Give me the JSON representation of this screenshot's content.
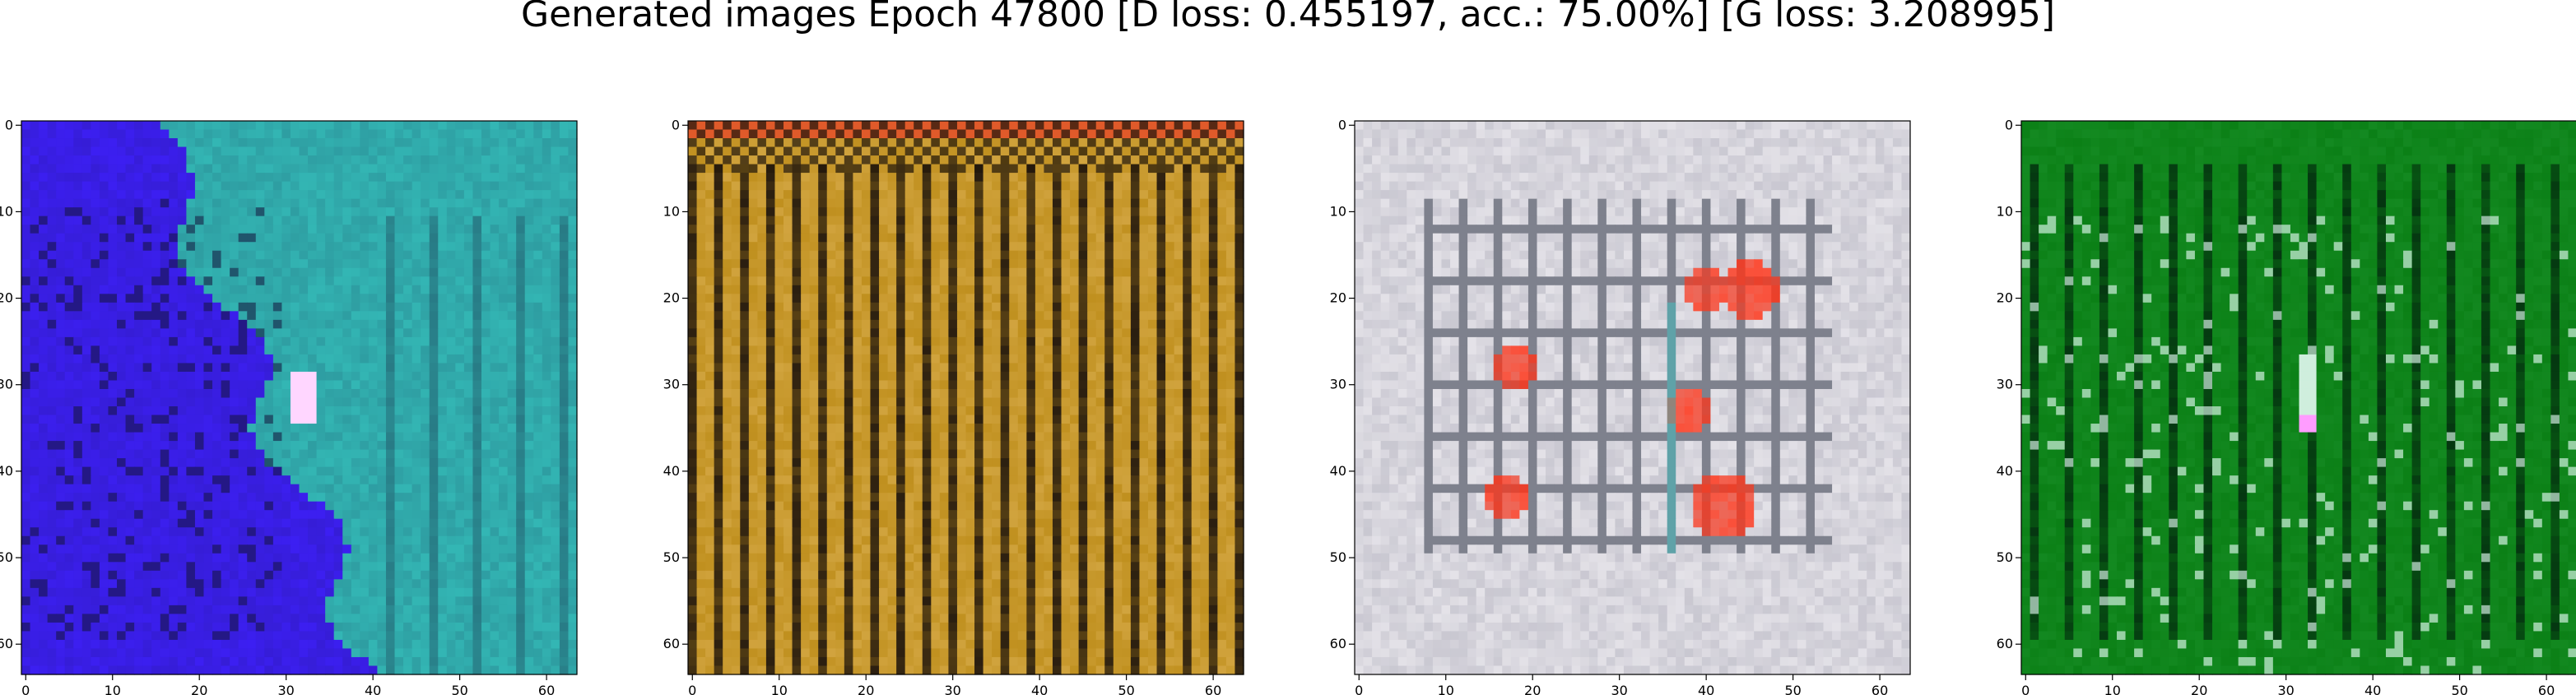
{
  "title": "Generated images Epoch 47800 [D loss: 0.455197, acc.: 75.00%] [G loss: 3.208995]",
  "chart_data": [
    {
      "type": "heatmap",
      "image_index": 1,
      "dominant_colors": [
        "#3a1ff0",
        "#2ab3b3"
      ],
      "description_colors": {
        "left_region": "#3c1ff2",
        "right_region": "#33b6b4",
        "highlight": "#ffd6ff"
      },
      "x_ticks": [
        0,
        10,
        20,
        30,
        40,
        50,
        60
      ],
      "y_ticks": [
        0,
        10,
        20,
        30,
        40,
        50,
        60
      ],
      "xlim": [
        -0.5,
        63.5
      ],
      "ylim": [
        63.5,
        -0.5
      ]
    },
    {
      "type": "heatmap",
      "image_index": 2,
      "dominant_colors": [
        "#b88a1a",
        "#3a2a10"
      ],
      "description_colors": {
        "base": "#c0901f",
        "stripes": "#2a1e10",
        "top_band": "#e05a2a"
      },
      "x_ticks": [
        0,
        10,
        20,
        30,
        40,
        50,
        60
      ],
      "y_ticks": [
        0,
        10,
        20,
        30,
        40,
        50,
        60
      ],
      "xlim": [
        -0.5,
        63.5
      ],
      "ylim": [
        63.5,
        -0.5
      ]
    },
    {
      "type": "heatmap",
      "image_index": 3,
      "dominant_colors": [
        "#e6e4ea",
        "#ff2a10"
      ],
      "description_colors": {
        "base": "#e4e2e8",
        "grid_lines": "#3a4050",
        "red_blobs": "#ff3418",
        "cyan_accent": "#3fc4c4"
      },
      "x_ticks": [
        0,
        10,
        20,
        30,
        40,
        50,
        60
      ],
      "y_ticks": [
        0,
        10,
        20,
        30,
        40,
        50,
        60
      ],
      "xlim": [
        -0.5,
        63.5
      ],
      "ylim": [
        63.5,
        -0.5
      ]
    },
    {
      "type": "heatmap",
      "image_index": 4,
      "dominant_colors": [
        "#0a7a14",
        "#02300a"
      ],
      "description_colors": {
        "base": "#0b8016",
        "stripes": "#043010",
        "highlights": "#cfeedd",
        "spot": "#ff9cff"
      },
      "x_ticks": [
        0,
        10,
        20,
        30,
        40,
        50,
        60
      ],
      "y_ticks": [
        0,
        10,
        20,
        30,
        40,
        50,
        60
      ],
      "xlim": [
        -0.5,
        63.5
      ],
      "ylim": [
        63.5,
        -0.5
      ]
    }
  ]
}
